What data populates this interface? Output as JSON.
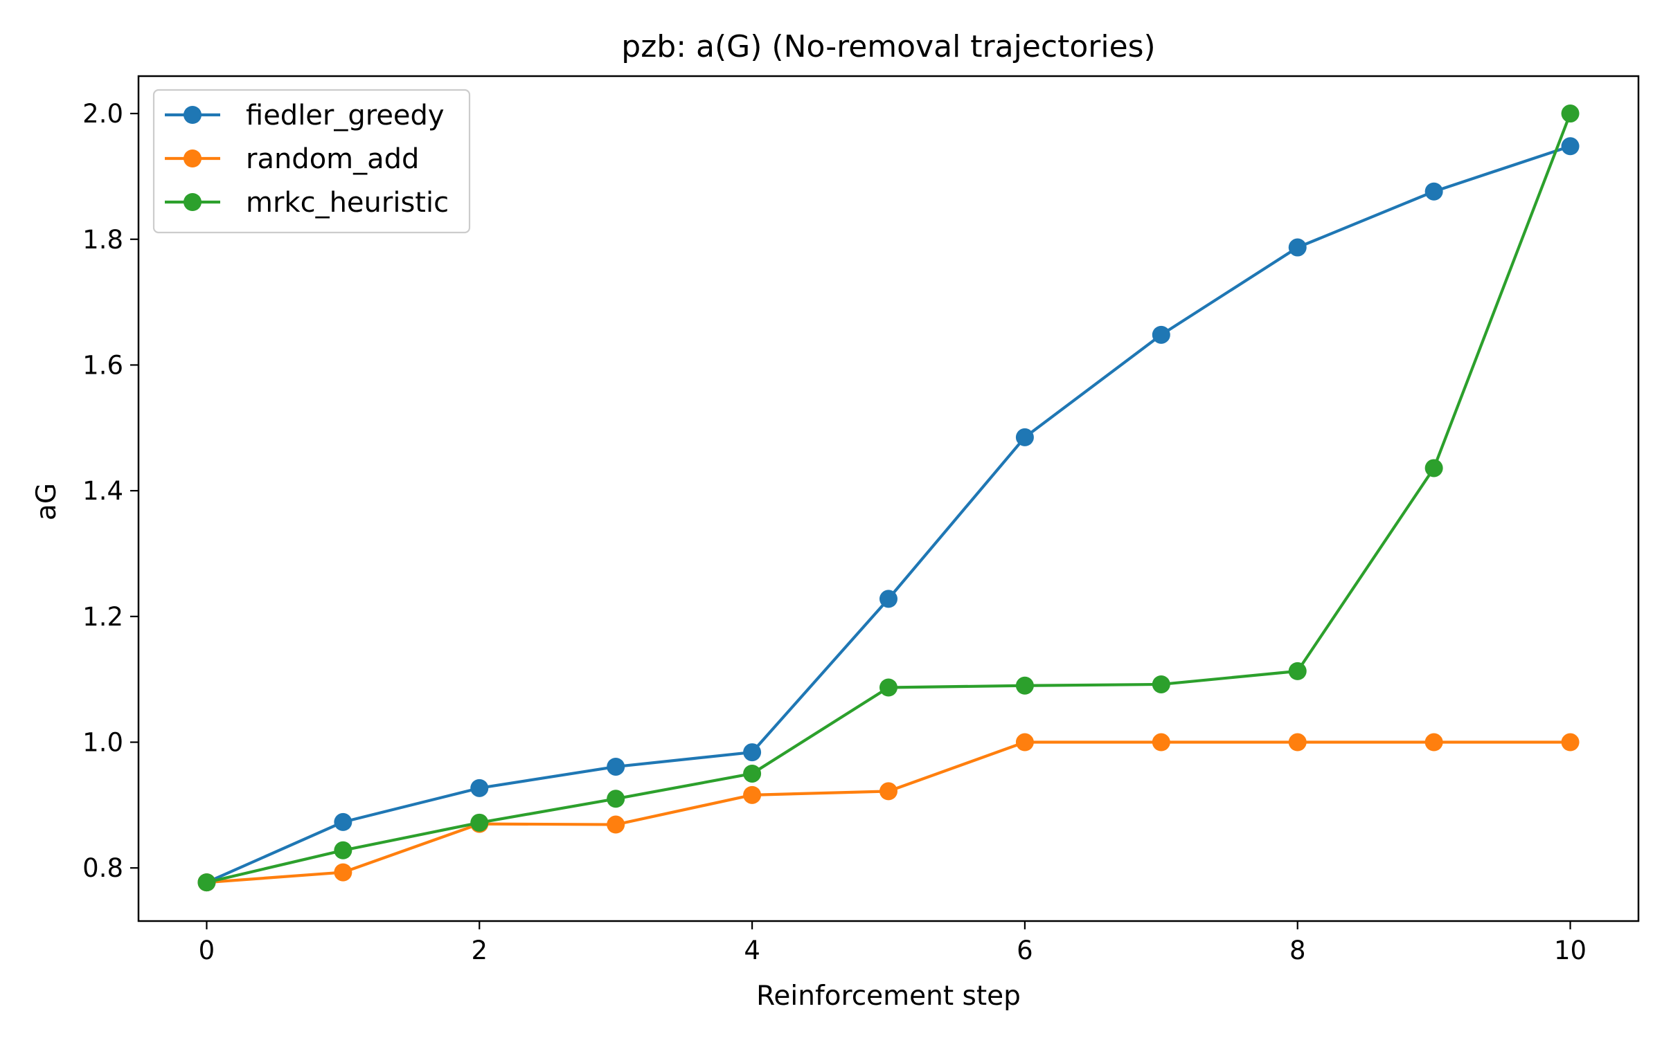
{
  "chart_data": {
    "type": "line",
    "title": "pzb: a(G) (No-removal trajectories)",
    "xlabel": "Reinforcement step",
    "ylabel": "aG",
    "xlim": [
      -0.5,
      10.5
    ],
    "ylim": [
      0.7155,
      2.0595
    ],
    "xticks": [
      0,
      2,
      4,
      6,
      8,
      10
    ],
    "xtick_labels": [
      "0",
      "2",
      "4",
      "6",
      "8",
      "10"
    ],
    "yticks": [
      0.8,
      1.0,
      1.2,
      1.4,
      1.6,
      1.8,
      2.0
    ],
    "ytick_labels": [
      "0.8",
      "1.0",
      "1.2",
      "1.4",
      "1.6",
      "1.8",
      "2.0"
    ],
    "grid": false,
    "legend_position": "upper-left",
    "x": [
      0,
      1,
      2,
      3,
      4,
      5,
      6,
      7,
      8,
      9,
      10
    ],
    "series": [
      {
        "name": "fiedler_greedy",
        "color": "#1f77b4",
        "values": [
          0.777,
          0.873,
          0.927,
          0.961,
          0.984,
          1.228,
          1.485,
          1.648,
          1.787,
          1.876,
          1.948
        ]
      },
      {
        "name": "random_add",
        "color": "#ff7f0e",
        "values": [
          0.777,
          0.793,
          0.87,
          0.869,
          0.916,
          0.922,
          1.0,
          1.0,
          1.0,
          1.0,
          1.0
        ]
      },
      {
        "name": "mrkc_heuristic",
        "color": "#2ca02c",
        "values": [
          0.777,
          0.828,
          0.872,
          0.91,
          0.95,
          1.087,
          1.09,
          1.092,
          1.113,
          1.436,
          2.0
        ]
      }
    ]
  }
}
